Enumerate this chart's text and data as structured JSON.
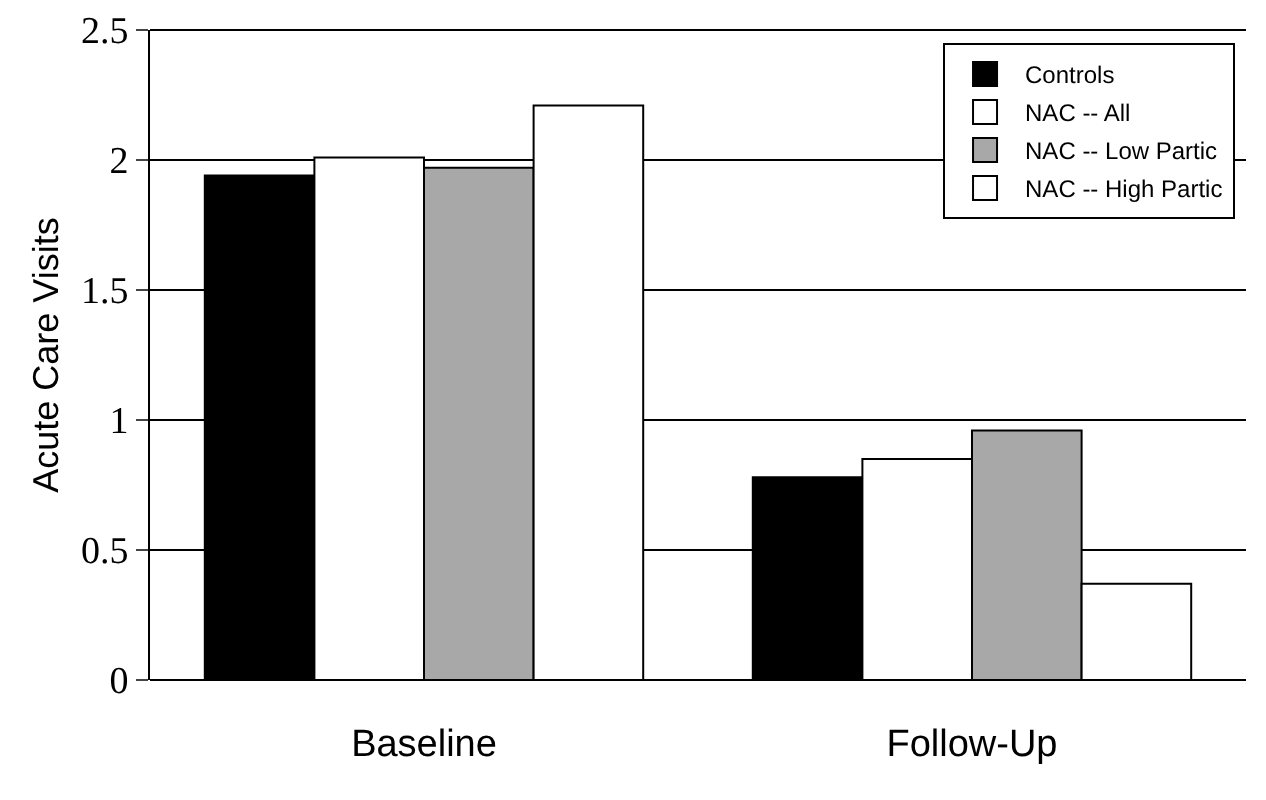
{
  "chart_data": {
    "type": "bar",
    "ylabel": "Acute Care Visits",
    "categories": [
      "Baseline",
      "Follow-Up"
    ],
    "series": [
      {
        "name": "Controls",
        "color": "#000000",
        "values": [
          1.94,
          0.78
        ]
      },
      {
        "name": "NAC -- All",
        "color": "#ffffff",
        "values": [
          2.01,
          0.85
        ]
      },
      {
        "name": "NAC -- Low Partic",
        "color": "#a8a8a8",
        "values": [
          1.97,
          0.96
        ]
      },
      {
        "name": "NAC -- High Partic",
        "color": "#ffffff",
        "values": [
          2.21,
          0.37
        ]
      }
    ],
    "ylim": [
      0,
      2.5
    ],
    "yticks": [
      0,
      0.5,
      1,
      1.5,
      2,
      2.5
    ],
    "grid": "y",
    "legend": "top right"
  }
}
